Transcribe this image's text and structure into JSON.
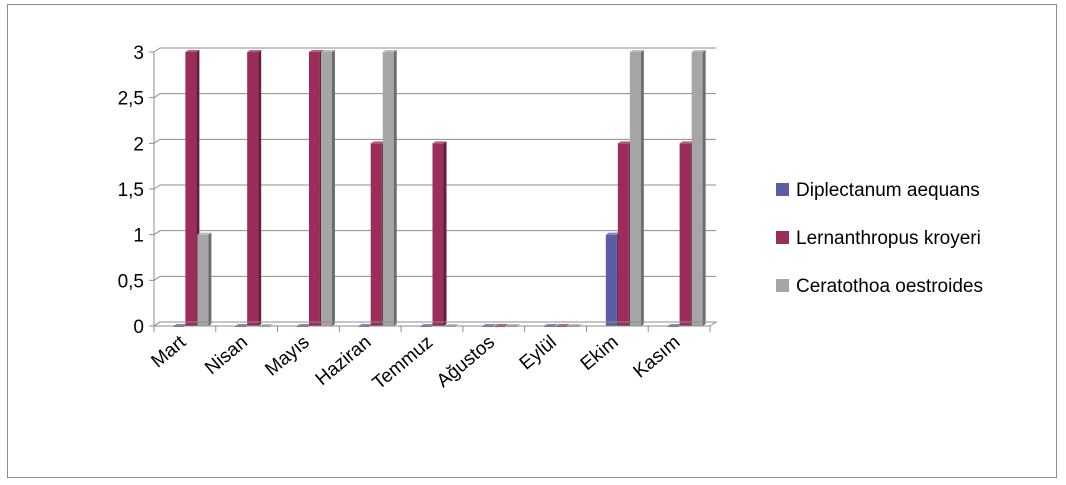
{
  "chart_data": {
    "type": "bar",
    "categories": [
      "Mart",
      "Nisan",
      "Mayıs",
      "Haziran",
      "Temmuz",
      "Ağustos",
      "Eylül",
      "Ekim",
      "Kasım"
    ],
    "series": [
      {
        "name": "Diplectanum aequans",
        "color": "#5b5ea6",
        "values": [
          0,
          0,
          0,
          0,
          0,
          0,
          0,
          1,
          0
        ]
      },
      {
        "name": "Lernanthropus kroyeri",
        "color": "#9b2d5b",
        "values": [
          3,
          3,
          3,
          2,
          2,
          0,
          0,
          2,
          2
        ]
      },
      {
        "name": "Ceratothoa oestroides",
        "color": "#a6a6a6",
        "values": [
          1,
          0,
          3,
          3,
          0,
          0,
          0,
          3,
          3
        ]
      }
    ],
    "yticks": [
      "0",
      "0,5",
      "1",
      "1,5",
      "2",
      "2,5",
      "3"
    ],
    "ylim": [
      0,
      3
    ],
    "grid": true,
    "legend_position": "right"
  }
}
